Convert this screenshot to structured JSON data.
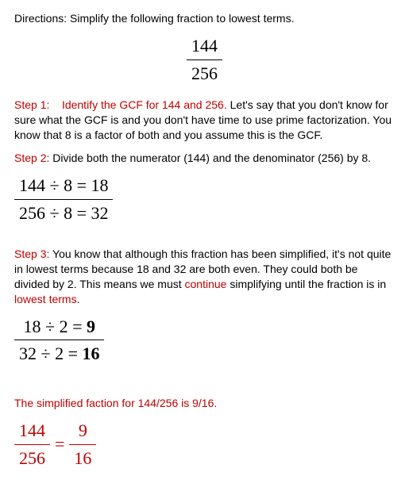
{
  "directions": "Directions:  Simplify the following fraction to lowest terms.",
  "main_fraction": {
    "num": "144",
    "den": "256"
  },
  "step1": {
    "label": "Step 1:",
    "title": "Identify the GCF for 144 and 256.",
    "body": "  Let's say that you don't know for sure what the GCF is and you don't have time to use prime factorization.  You know that 8 is a factor of both and you assume this is the GCF."
  },
  "step2": {
    "label": "Step 2:",
    "body": "   Divide both the numerator (144) and the denominator (256) by 8.",
    "frac_num": "144  ÷ 8 = 18",
    "frac_den": "256  ÷ 8 = 32"
  },
  "step3": {
    "label": "Step 3:",
    "lead": "   You know that although this fraction has been simplified, it's not quite in lowest terms because 18 and 32 are both even.  They could both be divided by 2.  This means we must ",
    "continue_word": "continue",
    "mid": " simplifying until the fraction is in ",
    "lowest_terms": "lowest terms",
    "tail": ".",
    "frac_num_a": " 18  ÷ 2 = ",
    "frac_num_b": "9",
    "frac_den_a": "32  ÷ 2 = ",
    "frac_den_b": "16"
  },
  "result_sentence": "The simplified faction for 144/256 is 9/16.",
  "final": {
    "left_num": "144",
    "left_den": "256",
    "right_num": "9",
    "right_den": "16",
    "equals": "="
  },
  "colors": {
    "accent": "#c00000",
    "text": "#000000"
  }
}
